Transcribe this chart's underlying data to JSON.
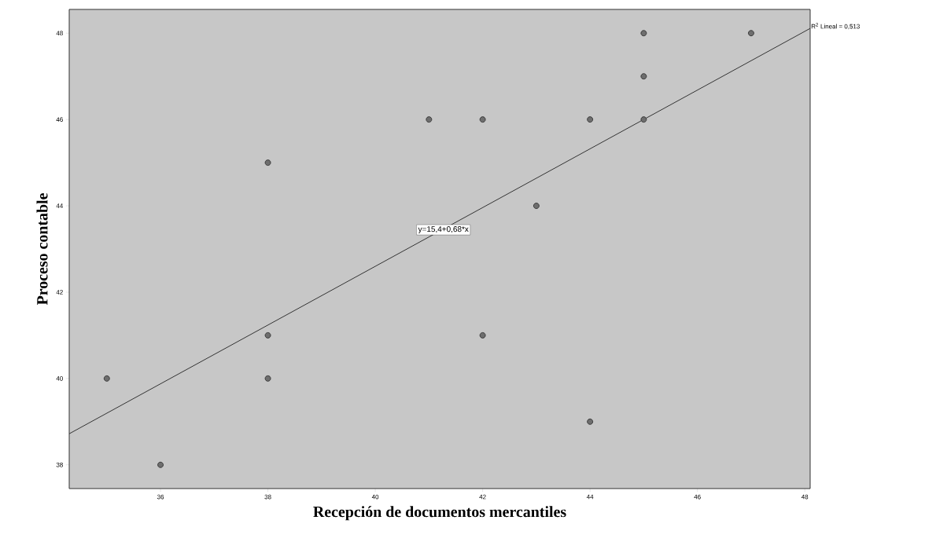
{
  "chart_data": {
    "type": "scatter",
    "xlabel": "Recepción de documentos mercantiles",
    "ylabel": "Proceso contable",
    "marker": "circle",
    "xlim": [
      34.3,
      48.1
    ],
    "ylim": [
      37.45,
      48.55
    ],
    "xticks": [
      36,
      38,
      40,
      42,
      44,
      46,
      48
    ],
    "yticks": [
      38,
      40,
      42,
      44,
      46,
      48
    ],
    "series": [
      {
        "color": "#6e6e6e",
        "x": [
          35,
          36,
          38,
          38,
          38,
          41,
          42,
          42,
          43,
          44,
          44,
          45,
          45,
          45,
          47
        ],
        "values": [
          40,
          38,
          45,
          41,
          40,
          46,
          46,
          41,
          44,
          46,
          39,
          48,
          47,
          46,
          48
        ]
      },
      {
        "type": "line",
        "marker": "none",
        "color": "#333333",
        "x": [
          34.3,
          48.1
        ],
        "values": [
          38.72,
          48.11
        ]
      }
    ],
    "annotations": [
      "y=15,4+0,68*x",
      "R$^{2}$ Lineal = 0,513"
    ]
  }
}
